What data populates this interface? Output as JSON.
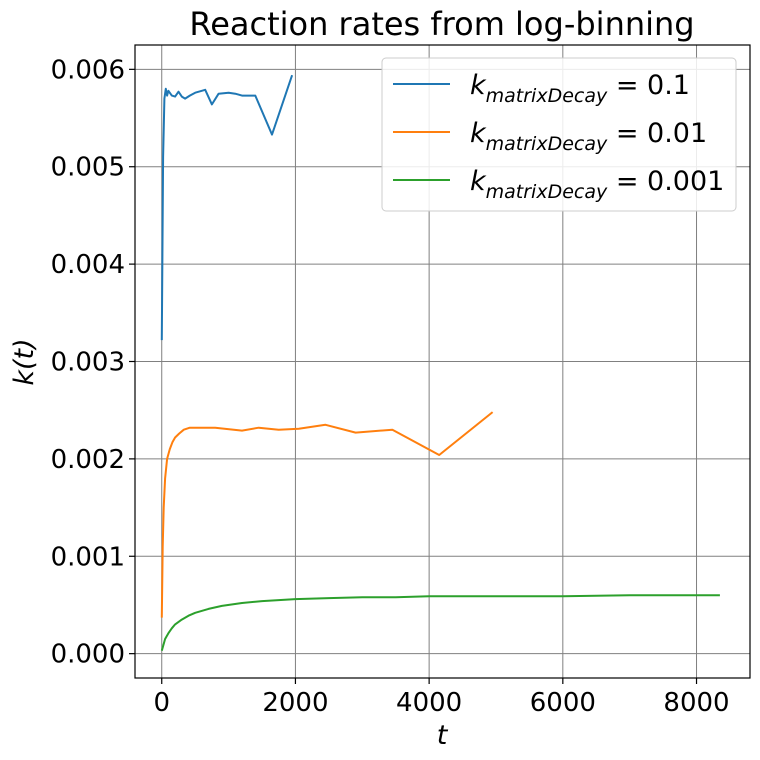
{
  "chart_data": {
    "type": "line",
    "title": "Reaction rates from log-binning",
    "xlabel": "t",
    "ylabel": "k(t)",
    "xlim": [
      -400,
      8800
    ],
    "ylim": [
      -0.00025,
      0.00625
    ],
    "xticks": [
      0,
      2000,
      4000,
      6000,
      8000
    ],
    "xtick_labels": [
      "0",
      "2000",
      "4000",
      "6000",
      "8000"
    ],
    "yticks": [
      0.0,
      0.001,
      0.002,
      0.003,
      0.004,
      0.005,
      0.006
    ],
    "ytick_labels": [
      "0.000",
      "0.001",
      "0.002",
      "0.003",
      "0.004",
      "0.005",
      "0.006"
    ],
    "grid": true,
    "legend_position": "top-right",
    "series": [
      {
        "name": "k_matrixDecay = 0.1",
        "legend_base": "k",
        "legend_sub": "matrixDecay",
        "legend_value": " = 0.1",
        "color": "#1f77b4",
        "x": [
          1,
          20,
          40,
          60,
          80,
          100,
          150,
          200,
          250,
          300,
          350,
          420,
          500,
          600,
          650,
          750,
          850,
          1000,
          1100,
          1200,
          1300,
          1400,
          1650,
          1950
        ],
        "y": [
          0.00322,
          0.0051,
          0.0057,
          0.0058,
          0.00573,
          0.00578,
          0.00573,
          0.00572,
          0.00577,
          0.00572,
          0.0057,
          0.00573,
          0.00576,
          0.00578,
          0.00579,
          0.00564,
          0.00575,
          0.00576,
          0.00575,
          0.00573,
          0.00573,
          0.00573,
          0.00533,
          0.00594
        ]
      },
      {
        "name": "k_matrixDecay = 0.01",
        "legend_base": "k",
        "legend_sub": "matrixDecay",
        "legend_value": " = 0.01",
        "color": "#ff7f0e",
        "x": [
          1,
          15,
          30,
          50,
          80,
          120,
          160,
          200,
          260,
          330,
          420,
          600,
          800,
          1200,
          1450,
          1750,
          2050,
          2450,
          2900,
          3450,
          4150,
          4950
        ],
        "y": [
          0.00037,
          0.0011,
          0.0015,
          0.0018,
          0.002,
          0.0021,
          0.00217,
          0.00222,
          0.00226,
          0.0023,
          0.00232,
          0.00232,
          0.00232,
          0.00229,
          0.00232,
          0.0023,
          0.00231,
          0.00235,
          0.00227,
          0.0023,
          0.00204,
          0.00248
        ]
      },
      {
        "name": "k_matrixDecay = 0.001",
        "legend_base": "k",
        "legend_sub": "matrixDecay",
        "legend_value": " = 0.001",
        "color": "#2ca02c",
        "x": [
          1,
          50,
          100,
          150,
          200,
          300,
          400,
          500,
          700,
          900,
          1200,
          1500,
          2000,
          2500,
          3000,
          3500,
          4000,
          5000,
          6000,
          7000,
          8350
        ],
        "y": [
          3e-05,
          0.00015,
          0.00021,
          0.00026,
          0.0003,
          0.00035,
          0.00039,
          0.00042,
          0.00046,
          0.00049,
          0.00052,
          0.00054,
          0.00056,
          0.00057,
          0.00058,
          0.00058,
          0.00059,
          0.00059,
          0.00059,
          0.0006,
          0.0006
        ]
      }
    ]
  }
}
